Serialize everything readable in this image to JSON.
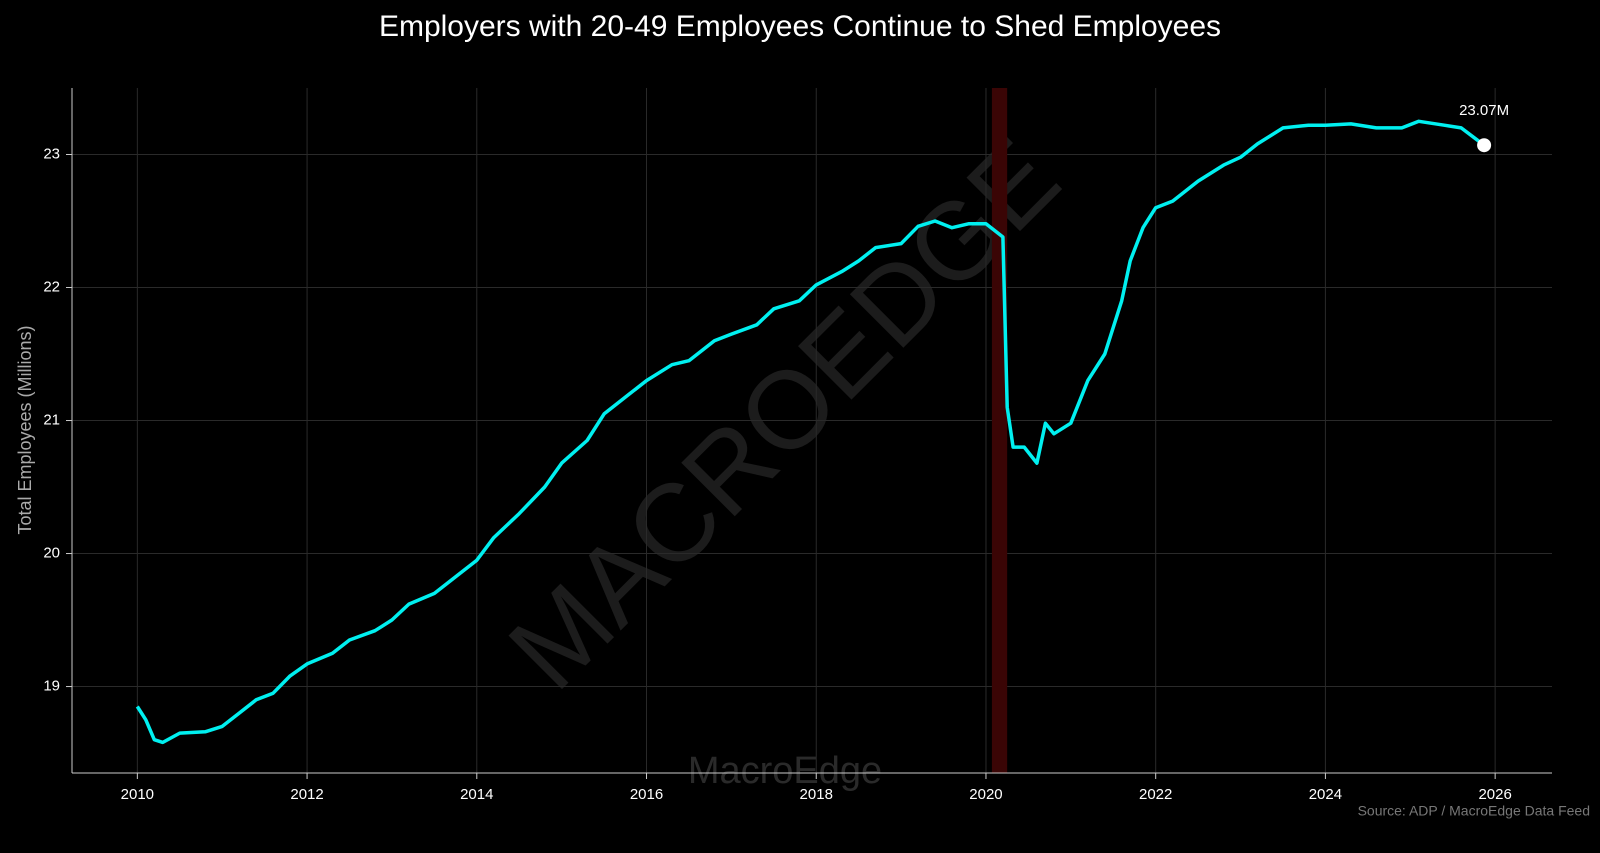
{
  "chart_data": {
    "type": "line",
    "title": "Employers with 20-49 Employees Continue to Shed Employees",
    "y_label": "Total Employees (Millions)",
    "source": "Source: ADP / MacroEdge Data Feed",
    "watermarks": [
      "MACROEDGE",
      "MacroEdge"
    ],
    "xlim": [
      2009.23,
      2026.67
    ],
    "xticks": [
      2010,
      2012,
      2014,
      2016,
      2018,
      2020,
      2022,
      2024,
      2026
    ],
    "ylim": [
      18.35,
      23.5
    ],
    "yticks": [
      19,
      20,
      21,
      22,
      23
    ],
    "grid": true,
    "shaded_band": {
      "range": [
        2020.07,
        2020.25
      ],
      "color": "#3a0505"
    },
    "annotation": {
      "text": "23.07M",
      "x": 2025.87,
      "y": 23.07
    },
    "x": [
      2010.0,
      2010.1,
      2010.2,
      2010.3,
      2010.5,
      2010.8,
      2011.0,
      2011.2,
      2011.4,
      2011.6,
      2011.8,
      2012.0,
      2012.3,
      2012.5,
      2012.8,
      2013.0,
      2013.2,
      2013.5,
      2013.8,
      2014.0,
      2014.2,
      2014.5,
      2014.8,
      2015.0,
      2015.3,
      2015.5,
      2015.8,
      2016.0,
      2016.3,
      2016.5,
      2016.8,
      2017.0,
      2017.3,
      2017.5,
      2017.8,
      2018.0,
      2018.3,
      2018.5,
      2018.7,
      2019.0,
      2019.2,
      2019.4,
      2019.6,
      2019.8,
      2020.0,
      2020.2,
      2020.25,
      2020.32,
      2020.45,
      2020.6,
      2020.7,
      2020.8,
      2021.0,
      2021.2,
      2021.4,
      2021.6,
      2021.7,
      2021.85,
      2022.0,
      2022.2,
      2022.5,
      2022.8,
      2023.0,
      2023.2,
      2023.5,
      2023.8,
      2024.0,
      2024.3,
      2024.6,
      2024.9,
      2025.1,
      2025.4,
      2025.6,
      2025.87
    ],
    "series": [
      {
        "name": "Total Employees",
        "color": "#00f0f0",
        "values": [
          18.85,
          18.75,
          18.6,
          18.58,
          18.65,
          18.66,
          18.7,
          18.8,
          18.9,
          18.95,
          19.08,
          19.17,
          19.25,
          19.35,
          19.42,
          19.5,
          19.62,
          19.7,
          19.85,
          19.95,
          20.12,
          20.3,
          20.5,
          20.68,
          20.85,
          21.05,
          21.2,
          21.3,
          21.42,
          21.45,
          21.6,
          21.65,
          21.72,
          21.84,
          21.9,
          22.02,
          22.12,
          22.2,
          22.3,
          22.33,
          22.46,
          22.5,
          22.45,
          22.48,
          22.48,
          22.38,
          21.1,
          20.8,
          20.8,
          20.68,
          20.98,
          20.9,
          20.98,
          21.3,
          21.5,
          21.9,
          22.2,
          22.45,
          22.6,
          22.65,
          22.8,
          22.92,
          22.98,
          23.08,
          23.2,
          23.22,
          23.22,
          23.23,
          23.2,
          23.2,
          23.25,
          23.22,
          23.2,
          23.07
        ]
      }
    ]
  }
}
